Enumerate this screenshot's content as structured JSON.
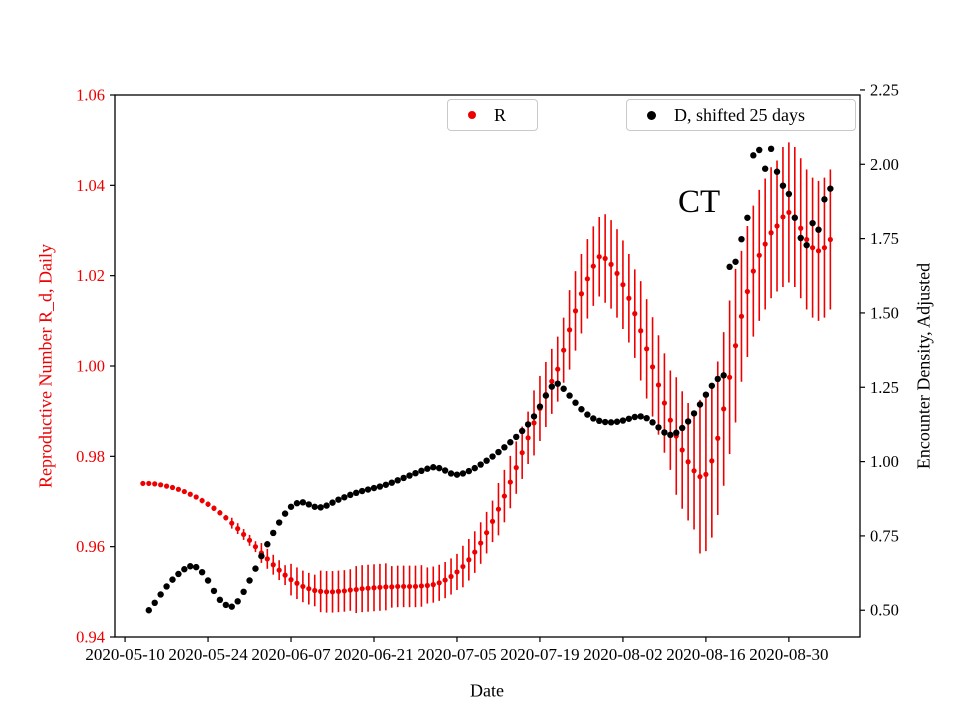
{
  "chart_data": {
    "type": "scatter",
    "annotation": "CT",
    "xlabel": "Date",
    "ylabel_left": "Reproductive Number R_d, Daily",
    "ylabel_right": "Encounter Density, Adjusted",
    "x_start_date": "2020-05-10",
    "x_tick_labels": [
      "2020-05-10",
      "2020-05-24",
      "2020-06-07",
      "2020-06-21",
      "2020-07-05",
      "2020-07-19",
      "2020-08-02",
      "2020-08-16",
      "2020-08-30"
    ],
    "x_tick_days": [
      0,
      14,
      28,
      42,
      56,
      70,
      84,
      98,
      112
    ],
    "x_range_days": [
      -1.7,
      124
    ],
    "grid": false,
    "axis_colors": {
      "left": "#ee0000",
      "right": "#000000"
    },
    "y_left": {
      "min": 0.94,
      "max": 1.06,
      "ticks": [
        0.94,
        0.96,
        0.98,
        1.0,
        1.02,
        1.04,
        1.06
      ],
      "tick_labels": [
        "0.94",
        "0.96",
        "0.98",
        "1.00",
        "1.02",
        "1.04",
        "1.06"
      ]
    },
    "y_right": {
      "min": 0.41,
      "max": 2.233,
      "ticks": [
        0.5,
        0.75,
        1.0,
        1.25,
        1.5,
        1.75,
        2.0,
        2.25
      ],
      "tick_labels": [
        "0.50",
        "0.75",
        "1.00",
        "1.25",
        "1.50",
        "1.75",
        "2.00",
        "2.25"
      ]
    },
    "legend": [
      {
        "label": "R",
        "color": "#ee0000"
      },
      {
        "label": "D, shifted 25 days",
        "color": "#000000"
      }
    ],
    "series": [
      {
        "name": "R",
        "axis": "left",
        "color": "#ee0000",
        "marker": "circle",
        "marker_size": 2.6,
        "errorbar": true,
        "start_day": 3,
        "step_days": 1,
        "values": [
          0.974,
          0.974,
          0.9739,
          0.9737,
          0.9734,
          0.9731,
          0.9727,
          0.9722,
          0.9716,
          0.971,
          0.9702,
          0.9694,
          0.9685,
          0.9675,
          0.9664,
          0.9652,
          0.964,
          0.9627,
          0.9614,
          0.96,
          0.9586,
          0.9573,
          0.956,
          0.9548,
          0.9537,
          0.9527,
          0.9519,
          0.9512,
          0.9507,
          0.9503,
          0.9501,
          0.95,
          0.95,
          0.9501,
          0.9502,
          0.9504,
          0.9505,
          0.9507,
          0.9508,
          0.9509,
          0.951,
          0.9511,
          0.9511,
          0.9512,
          0.9512,
          0.9512,
          0.9512,
          0.9513,
          0.9514,
          0.9516,
          0.952,
          0.9526,
          0.9534,
          0.9544,
          0.9556,
          0.9571,
          0.9588,
          0.9608,
          0.9631,
          0.9656,
          0.9683,
          0.9712,
          0.9743,
          0.9775,
          0.9808,
          0.9841,
          0.9874,
          0.9906,
          0.9937,
          0.9966,
          0.9993,
          1.0035,
          1.008,
          1.0122,
          1.016,
          1.0193,
          1.0221,
          1.0242,
          1.0238,
          1.0225,
          1.0205,
          1.018,
          1.015,
          1.0116,
          1.0078,
          1.0038,
          0.9998,
          0.9958,
          0.9918,
          0.988,
          0.9845,
          0.9814,
          0.9788,
          0.9768,
          0.9755,
          0.976,
          0.979,
          0.984,
          0.9905,
          0.9975,
          1.0045,
          1.011,
          1.0165,
          1.021,
          1.0245,
          1.027,
          1.0295,
          1.031,
          1.033,
          1.034,
          1.033,
          1.0305,
          1.028,
          1.0262,
          1.0255,
          1.0262,
          1.028
        ],
        "errors": [
          0.0003,
          0.0003,
          0.0003,
          0.0003,
          0.0003,
          0.0003,
          0.0003,
          0.0003,
          0.0003,
          0.0003,
          0.0006,
          0.0006,
          0.0006,
          0.0006,
          0.0006,
          0.0012,
          0.0012,
          0.0012,
          0.0012,
          0.0012,
          0.0022,
          0.0022,
          0.0022,
          0.0022,
          0.0022,
          0.0035,
          0.0035,
          0.0035,
          0.0035,
          0.0035,
          0.0046,
          0.0046,
          0.0046,
          0.0046,
          0.0046,
          0.0046,
          0.0052,
          0.0052,
          0.0052,
          0.0052,
          0.0052,
          0.0052,
          0.0046,
          0.0046,
          0.0046,
          0.0046,
          0.0046,
          0.0046,
          0.004,
          0.004,
          0.004,
          0.004,
          0.004,
          0.004,
          0.0046,
          0.0046,
          0.0046,
          0.0046,
          0.0046,
          0.0046,
          0.0058,
          0.0058,
          0.0058,
          0.0058,
          0.0058,
          0.0058,
          0.0072,
          0.0072,
          0.0072,
          0.0072,
          0.0072,
          0.0072,
          0.0088,
          0.0088,
          0.0088,
          0.0088,
          0.0088,
          0.0088,
          0.0098,
          0.0098,
          0.0098,
          0.0098,
          0.0098,
          0.0098,
          0.011,
          0.011,
          0.011,
          0.011,
          0.011,
          0.011,
          0.013,
          0.013,
          0.013,
          0.013,
          0.017,
          0.017,
          0.017,
          0.017,
          0.017,
          0.017,
          0.017,
          0.0145,
          0.0145,
          0.0145,
          0.0145,
          0.0145,
          0.0145,
          0.0145,
          0.0155,
          0.0155,
          0.0155,
          0.0155,
          0.0155,
          0.0155,
          0.0155,
          0.0155,
          0.0155
        ]
      },
      {
        "name": "D, shifted 25 days",
        "axis": "right",
        "color": "#000000",
        "marker": "circle",
        "marker_size": 3.2,
        "errorbar": false,
        "start_day": 4,
        "step_days": 1,
        "values": [
          0.5,
          0.525,
          0.553,
          0.58,
          0.603,
          0.622,
          0.638,
          0.648,
          0.645,
          0.628,
          0.6,
          0.565,
          0.535,
          0.518,
          0.512,
          0.53,
          0.562,
          0.6,
          0.64,
          0.682,
          0.722,
          0.76,
          0.795,
          0.825,
          0.848,
          0.86,
          0.863,
          0.856,
          0.848,
          0.846,
          0.852,
          0.862,
          0.872,
          0.88,
          0.888,
          0.895,
          0.901,
          0.906,
          0.911,
          0.916,
          0.922,
          0.929,
          0.937,
          0.945,
          0.953,
          0.961,
          0.969,
          0.976,
          0.981,
          0.978,
          0.97,
          0.96,
          0.956,
          0.96,
          0.968,
          0.978,
          0.99,
          1.003,
          1.017,
          1.032,
          1.048,
          1.065,
          1.083,
          1.103,
          1.125,
          1.152,
          1.185,
          1.222,
          1.252,
          1.262,
          1.245,
          1.222,
          1.198,
          1.176,
          1.158,
          1.145,
          1.137,
          1.133,
          1.132,
          1.134,
          1.138,
          1.144,
          1.15,
          1.152,
          1.146,
          1.132,
          1.115,
          1.098,
          1.09,
          1.097,
          1.113,
          1.135,
          1.162,
          1.192,
          1.225,
          1.255,
          1.278,
          1.29,
          1.655,
          1.672,
          1.748,
          1.82,
          2.03,
          2.048,
          1.985,
          2.052,
          1.975,
          1.928,
          1.9,
          1.82,
          1.752,
          1.728,
          1.802,
          1.78,
          1.882,
          1.918
        ]
      }
    ]
  }
}
